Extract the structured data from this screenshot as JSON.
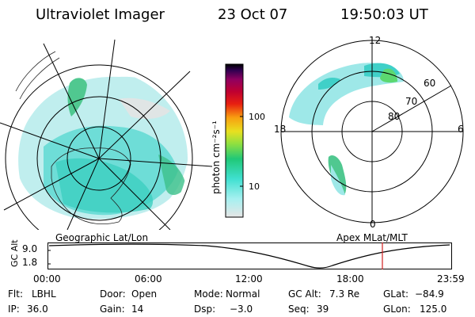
{
  "header": {
    "instrument": "Ultraviolet Imager",
    "date": "23 Oct 07",
    "time": "19:50:03 UT"
  },
  "geo_panel": {
    "label": "Geographic Lat/Lon"
  },
  "apex_panel": {
    "label": "Apex MLat/MLT",
    "mlt_labels": {
      "top": "12",
      "bottom": "0",
      "left": "18",
      "right": "6"
    },
    "lat_labels": [
      "60",
      "70",
      "80"
    ]
  },
  "colorbar": {
    "unit_label": "photon cm⁻²s⁻¹",
    "ticks": [
      "100",
      "10"
    ],
    "scale": "log",
    "colors": [
      "#e6e6e6",
      "#a6f0f0",
      "#40e0d0",
      "#20c878",
      "#90e040",
      "#e8e020",
      "#f8a010",
      "#e82010",
      "#c00030",
      "#900060",
      "#300050",
      "#000000"
    ]
  },
  "timeline": {
    "axis_label": "GC Alt",
    "y_ticks": [
      "9.0",
      "1.8"
    ],
    "x_ticks": [
      "00:00",
      "06:00",
      "12:00",
      "18:00",
      "23:59"
    ],
    "current_marker_color": "#d02020"
  },
  "info": {
    "row1": [
      {
        "key": "Flt:",
        "val": "LBHL"
      },
      {
        "key": "Door:",
        "val": "Open"
      },
      {
        "key": "Mode:",
        "val": "Normal"
      },
      {
        "key": "GC Alt:",
        "val": "7.3 Re"
      },
      {
        "key": "GLat:",
        "val": "−84.9"
      }
    ],
    "row2": [
      {
        "key": "IP:",
        "val": "36.0"
      },
      {
        "key": "Gain:",
        "val": "14"
      },
      {
        "key": "Dsp:",
        "val": "−3.0"
      },
      {
        "key": "Seq:",
        "val": "39"
      },
      {
        "key": "GLon:",
        "val": "125.0"
      }
    ]
  }
}
